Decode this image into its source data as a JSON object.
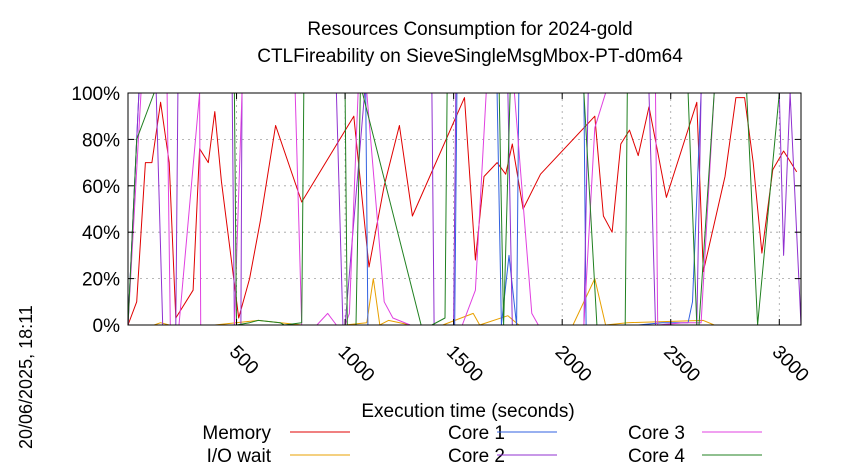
{
  "chart_data": {
    "type": "line",
    "title": [
      "Resources Consumption for 2024-gold",
      "CTLFireability on SieveSingleMsgMbox-PT-d0m64"
    ],
    "xlabel": "Execution time (seconds)",
    "ylabel": "",
    "xlim": [
      0,
      3100
    ],
    "ylim": [
      0,
      100
    ],
    "x_ticks": [
      500,
      1000,
      1500,
      2000,
      2500,
      3000
    ],
    "x_tick_labels": [
      "500",
      "1000",
      "1500",
      "2000",
      "2500",
      "3000"
    ],
    "y_ticks": [
      0,
      20,
      40,
      60,
      80,
      100
    ],
    "y_tick_labels": [
      "0%",
      "20%",
      "40%",
      "60%",
      "80%",
      "100%"
    ],
    "grid": true,
    "legend_position": "bottom",
    "timestamp": "20/06/2025, 18:11",
    "series": [
      {
        "name": "Memory",
        "color": "#e00000",
        "x": [
          0,
          40,
          80,
          110,
          150,
          190,
          220,
          300,
          330,
          370,
          400,
          430,
          510,
          560,
          610,
          680,
          800,
          1040,
          1110,
          1180,
          1250,
          1310,
          1550,
          1600,
          1640,
          1700,
          1740,
          1770,
          1820,
          1900,
          2150,
          2190,
          2230,
          2270,
          2310,
          2350,
          2400,
          2480,
          2620,
          2650,
          2750,
          2800,
          2840,
          2880,
          2920,
          2970,
          3020,
          3080
        ],
        "y": [
          0,
          10,
          70,
          70,
          96,
          70,
          3,
          15,
          76,
          70,
          92,
          62,
          3,
          20,
          45,
          86,
          53,
          90,
          25,
          60,
          86,
          47,
          98,
          28,
          64,
          70,
          65,
          78,
          50,
          65,
          90,
          47,
          40,
          78,
          84,
          73,
          94,
          55,
          96,
          23,
          64,
          98,
          98,
          70,
          31,
          67,
          75,
          66
        ]
      },
      {
        "name": "I/O wait",
        "color": "#e8a000",
        "x": [
          0,
          120,
          150,
          190,
          220,
          400,
          600,
          800,
          1000,
          1100,
          1130,
          1160,
          1200,
          1300,
          1450,
          1590,
          1620,
          1750,
          1800,
          2050,
          2150,
          2200,
          2300,
          2650,
          2700,
          3100
        ],
        "y": [
          0,
          0,
          1,
          0,
          0,
          0,
          2,
          0,
          0,
          1,
          20,
          0,
          2,
          0,
          0,
          5,
          0,
          4,
          0,
          0,
          20,
          0,
          1,
          2,
          0,
          0
        ]
      },
      {
        "name": "Core 1",
        "color": "#3060e0",
        "x": [
          0,
          50,
          100,
          170,
          240,
          490,
          500,
          1050,
          1060,
          1095,
          1105,
          1150,
          1160,
          1300,
          1440,
          1505,
          1515,
          1650,
          1660,
          1700,
          1720,
          1755,
          1790,
          1800,
          1850,
          2100,
          2110,
          2200,
          2240,
          2350,
          2460,
          2580,
          2600,
          2640,
          2670,
          2680,
          2760,
          2770,
          2840,
          3040,
          3100
        ],
        "y": [
          0,
          100,
          100,
          100,
          100,
          100,
          100,
          100,
          100,
          100,
          0,
          0,
          0,
          0,
          0,
          0,
          100,
          100,
          100,
          100,
          0,
          30,
          0,
          100,
          100,
          100,
          0,
          0,
          0,
          0,
          1,
          1,
          10,
          100,
          100,
          100,
          100,
          100,
          100,
          100,
          100
        ]
      },
      {
        "name": "Core 2",
        "color": "#9030d0",
        "x": [
          0,
          50,
          130,
          160,
          220,
          230,
          480,
          490,
          520,
          525,
          610,
          700,
          820,
          960,
          990,
          1000,
          1090,
          1130,
          1160,
          1180,
          1310,
          1400,
          1410,
          1430,
          1500,
          1510,
          1600,
          1640,
          1660,
          1750,
          1770,
          1820,
          1950,
          2100,
          2120,
          2200,
          2230,
          2250,
          2400,
          2430,
          2560,
          2620,
          2640,
          2700,
          2760,
          2840,
          2850,
          3000,
          3020,
          3050,
          3100
        ],
        "y": [
          0,
          100,
          100,
          0,
          0,
          100,
          100,
          0,
          0,
          100,
          100,
          100,
          100,
          100,
          0,
          0,
          100,
          100,
          100,
          100,
          100,
          100,
          0,
          0,
          0,
          100,
          100,
          100,
          100,
          100,
          0,
          0,
          0,
          0,
          100,
          100,
          100,
          100,
          100,
          0,
          0,
          0,
          100,
          100,
          100,
          100,
          100,
          100,
          30,
          100,
          0
        ]
      },
      {
        "name": "Core 3",
        "color": "#e040e0",
        "x": [
          0,
          60,
          180,
          195,
          235,
          330,
          335,
          490,
          525,
          580,
          770,
          800,
          870,
          920,
          960,
          1000,
          1020,
          1060,
          1100,
          1180,
          1220,
          1300,
          1500,
          1540,
          1600,
          1650,
          1760,
          1780,
          1860,
          1890,
          2100,
          2150,
          2200,
          2280,
          2360,
          2430,
          2440,
          2560,
          2640,
          2700,
          2900,
          3030,
          3060,
          3100
        ],
        "y": [
          0,
          100,
          100,
          0,
          0,
          100,
          0,
          0,
          100,
          100,
          100,
          0,
          0,
          5,
          0,
          0,
          5,
          100,
          100,
          10,
          3,
          0,
          0,
          0,
          15,
          100,
          100,
          100,
          5,
          0,
          0,
          85,
          100,
          100,
          100,
          100,
          0,
          1,
          1,
          100,
          100,
          100,
          100,
          100
        ]
      },
      {
        "name": "Core 4",
        "color": "#208020",
        "x": [
          0,
          40,
          120,
          180,
          200,
          490,
          500,
          560,
          600,
          700,
          720,
          800,
          810,
          1000,
          1010,
          1050,
          1070,
          1080,
          1350,
          1400,
          1460,
          1470,
          1520,
          1600,
          1710,
          1730,
          1760,
          1870,
          2100,
          2160,
          2200,
          2290,
          2300,
          2320,
          2580,
          2620,
          2630,
          2700,
          2850,
          2900,
          3000,
          3060,
          3100
        ],
        "y": [
          0,
          80,
          100,
          100,
          100,
          100,
          0,
          1,
          2,
          1,
          0,
          1,
          100,
          100,
          0,
          0,
          100,
          100,
          0,
          0,
          3,
          100,
          100,
          100,
          100,
          0,
          100,
          100,
          100,
          0,
          0,
          0,
          100,
          100,
          100,
          0,
          0,
          100,
          100,
          0,
          100,
          100,
          100
        ]
      }
    ]
  }
}
